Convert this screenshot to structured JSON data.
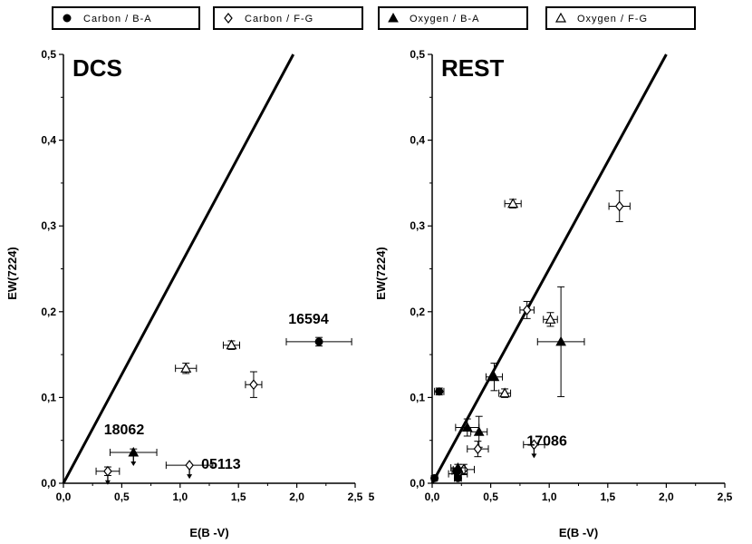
{
  "legend": [
    {
      "label": "Carbon / B-A",
      "marker": "filled-circle"
    },
    {
      "label": "Carbon / F-G",
      "marker": "open-diamond"
    },
    {
      "label": "Oxygen / B-A",
      "marker": "filled-triangle"
    },
    {
      "label": "Oxygen / F-G",
      "marker": "open-triangle"
    }
  ],
  "chart_data": [
    {
      "type": "scatter",
      "title": "DCS",
      "xlabel": "E(B -V)",
      "ylabel": "EW(7224)",
      "xlim": [
        0,
        2.5
      ],
      "ylim": [
        0,
        0.5
      ],
      "xticks": [
        "0,0",
        "0,5",
        "1,0",
        "1,5",
        "2,0",
        "2,5"
      ],
      "extra_tick": "5",
      "yticks": [
        "0,0",
        "0,1",
        "0,2",
        "0,3",
        "0,4",
        "0,5"
      ],
      "line": {
        "x": [
          0,
          1.97
        ],
        "y": [
          0,
          0.5
        ]
      },
      "points": [
        {
          "series": "Carbon / B-A",
          "x": 2.19,
          "y": 0.165,
          "xerr": 0.28,
          "yerr": 0.005
        },
        {
          "series": "Oxygen / F-G",
          "x": 1.44,
          "y": 0.161,
          "xerr": 0.07,
          "yerr": 0.005
        },
        {
          "series": "Oxygen / F-G",
          "x": 1.05,
          "y": 0.134,
          "xerr": 0.09,
          "yerr": 0.006
        },
        {
          "series": "Carbon / F-G",
          "x": 1.63,
          "y": 0.115,
          "xerr": 0.07,
          "yerr": 0.015
        },
        {
          "series": "Oxygen / B-A",
          "x": 0.6,
          "y": 0.036,
          "xerr": 0.2,
          "yerr": 0.004,
          "upper_limit": true
        },
        {
          "series": "Carbon / F-G",
          "x": 1.08,
          "y": 0.021,
          "xerr": 0.2,
          "yerr": 0.0,
          "upper_limit": true
        },
        {
          "series": "Carbon / F-G",
          "x": 0.38,
          "y": 0.014,
          "xerr": 0.1,
          "yerr": 0.005,
          "upper_limit": true
        }
      ],
      "annotations": [
        {
          "text": "16594",
          "x": 2.1,
          "y": 0.186
        },
        {
          "text": "18062",
          "x": 0.52,
          "y": 0.057
        },
        {
          "text": "05113",
          "x": 1.35,
          "y": 0.017
        }
      ]
    },
    {
      "type": "scatter",
      "title": "REST",
      "xlabel": "E(B -V)",
      "ylabel": "EW(7224)",
      "xlim": [
        0,
        2.5
      ],
      "ylim": [
        0,
        0.5
      ],
      "xticks": [
        "0,0",
        "0,5",
        "1,0",
        "1,5",
        "2,0",
        "2,5"
      ],
      "yticks": [
        "0,0",
        "0,1",
        "0,2",
        "0,3",
        "0,4",
        "0,5"
      ],
      "line": {
        "x": [
          0,
          2.0
        ],
        "y": [
          0,
          0.5
        ]
      },
      "points": [
        {
          "series": "Carbon / F-G",
          "x": 1.6,
          "y": 0.323,
          "xerr": 0.09,
          "yerr": 0.018
        },
        {
          "series": "Oxygen / F-G",
          "x": 0.69,
          "y": 0.326,
          "xerr": 0.07,
          "yerr": 0.005
        },
        {
          "series": "Carbon / F-G",
          "x": 0.81,
          "y": 0.202,
          "xerr": 0.06,
          "yerr": 0.01
        },
        {
          "series": "Oxygen / F-G",
          "x": 1.01,
          "y": 0.191,
          "xerr": 0.06,
          "yerr": 0.008
        },
        {
          "series": "Oxygen / B-A",
          "x": 1.1,
          "y": 0.165,
          "xerr": 0.2,
          "yerr": 0.064
        },
        {
          "series": "Oxygen / B-A",
          "x": 0.53,
          "y": 0.124,
          "xerr": 0.07,
          "yerr": 0.016
        },
        {
          "series": "Oxygen / F-G",
          "x": 0.62,
          "y": 0.105,
          "xerr": 0.05,
          "yerr": 0.005
        },
        {
          "series": "Carbon / B-A",
          "x": 0.06,
          "y": 0.107,
          "xerr": 0.04,
          "yerr": 0.004
        },
        {
          "series": "Oxygen / B-A",
          "x": 0.3,
          "y": 0.065,
          "xerr": 0.1,
          "yerr": 0.01
        },
        {
          "series": "Oxygen / B-A",
          "x": 0.4,
          "y": 0.06,
          "xerr": 0.07,
          "yerr": 0.018
        },
        {
          "series": "Carbon / F-G",
          "x": 0.39,
          "y": 0.04,
          "xerr": 0.09,
          "yerr": 0.009
        },
        {
          "series": "Carbon / F-G",
          "x": 0.87,
          "y": 0.045,
          "xerr": 0.09,
          "yerr": 0.0,
          "upper_limit": true
        },
        {
          "series": "Carbon / F-G",
          "x": 0.27,
          "y": 0.016,
          "xerr": 0.09,
          "yerr": 0.006
        },
        {
          "series": "Carbon / F-G",
          "x": 0.22,
          "y": 0.011,
          "xerr": 0.08,
          "yerr": 0.005
        },
        {
          "series": "Oxygen / B-A",
          "x": 0.22,
          "y": 0.018,
          "xerr": 0.06,
          "yerr": 0.004
        },
        {
          "series": "Carbon / B-A",
          "x": 0.21,
          "y": 0.014,
          "xerr": 0.04,
          "yerr": 0.003
        },
        {
          "series": "Carbon / B-A",
          "x": 0.22,
          "y": 0.006,
          "xerr": 0.03,
          "yerr": 0.003
        },
        {
          "series": "Carbon / B-A",
          "x": 0.02,
          "y": 0.006,
          "xerr": 0.02,
          "yerr": 0.003
        }
      ],
      "annotations": [
        {
          "text": "17086",
          "x": 0.98,
          "y": 0.044
        }
      ]
    }
  ]
}
